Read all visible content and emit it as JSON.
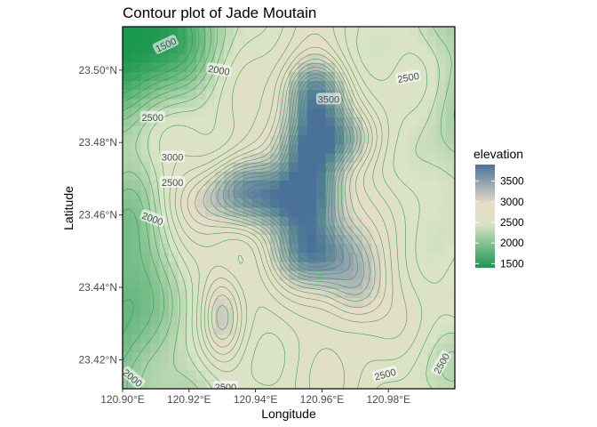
{
  "chart_data": {
    "type": "heatmap",
    "title": "Contour plot of Jade Moutain",
    "xlabel": "Longitude",
    "ylabel": "Latitude",
    "xlim": [
      120.9,
      121.0
    ],
    "ylim": [
      23.412,
      23.512
    ],
    "x_ticks": [
      {
        "value": 120.9,
        "label": "120.90°E"
      },
      {
        "value": 120.92,
        "label": "120.92°E"
      },
      {
        "value": 120.94,
        "label": "120.94°E"
      },
      {
        "value": 120.96,
        "label": "120.96°E"
      },
      {
        "value": 120.98,
        "label": "120.98°E"
      }
    ],
    "y_ticks": [
      {
        "value": 23.42,
        "label": "23.42°N"
      },
      {
        "value": 23.44,
        "label": "23.44°N"
      },
      {
        "value": 23.46,
        "label": "23.46°N"
      },
      {
        "value": 23.48,
        "label": "23.48°N"
      },
      {
        "value": 23.5,
        "label": "23.50°N"
      }
    ],
    "legend": {
      "title": "elevation",
      "position": "right",
      "range": [
        1400,
        3900
      ],
      "breaks": [
        {
          "value": 3500,
          "label": "3500"
        },
        {
          "value": 3000,
          "label": "3000"
        },
        {
          "value": 2500,
          "label": "2500"
        },
        {
          "value": 2000,
          "label": "2000"
        },
        {
          "value": 1500,
          "label": "1500"
        }
      ],
      "colors": {
        "low": "#1a9850",
        "mid": "#e8dcc8",
        "high": "#4a7299"
      }
    },
    "contour_interval": 100,
    "contour_color": "#1b9e3e",
    "contour_labels": [
      {
        "text": "1500",
        "lon": 120.913,
        "lat": 23.507,
        "angle": -25
      },
      {
        "text": "2000",
        "lon": 120.929,
        "lat": 23.5,
        "angle": 10
      },
      {
        "text": "2500",
        "lon": 120.986,
        "lat": 23.498,
        "angle": -10
      },
      {
        "text": "3500",
        "lon": 120.962,
        "lat": 23.492,
        "angle": 0
      },
      {
        "text": "2500",
        "lon": 120.909,
        "lat": 23.487,
        "angle": 0
      },
      {
        "text": "3000",
        "lon": 120.915,
        "lat": 23.476,
        "angle": 0
      },
      {
        "text": "2500",
        "lon": 120.915,
        "lat": 23.469,
        "angle": 0
      },
      {
        "text": "2000",
        "lon": 120.909,
        "lat": 23.459,
        "angle": 20
      },
      {
        "text": "2000",
        "lon": 120.903,
        "lat": 23.415,
        "angle": 40
      },
      {
        "text": "2500",
        "lon": 120.979,
        "lat": 23.416,
        "angle": -15
      },
      {
        "text": "2500",
        "lon": 120.996,
        "lat": 23.419,
        "angle": -60
      },
      {
        "text": "2500",
        "lon": 120.931,
        "lat": 23.4125,
        "angle": 0
      }
    ],
    "grid": false,
    "note_values": "elevation surface with a central ridge ~3500-3900 along the middle, falling to ~1500 at the NW corner"
  }
}
